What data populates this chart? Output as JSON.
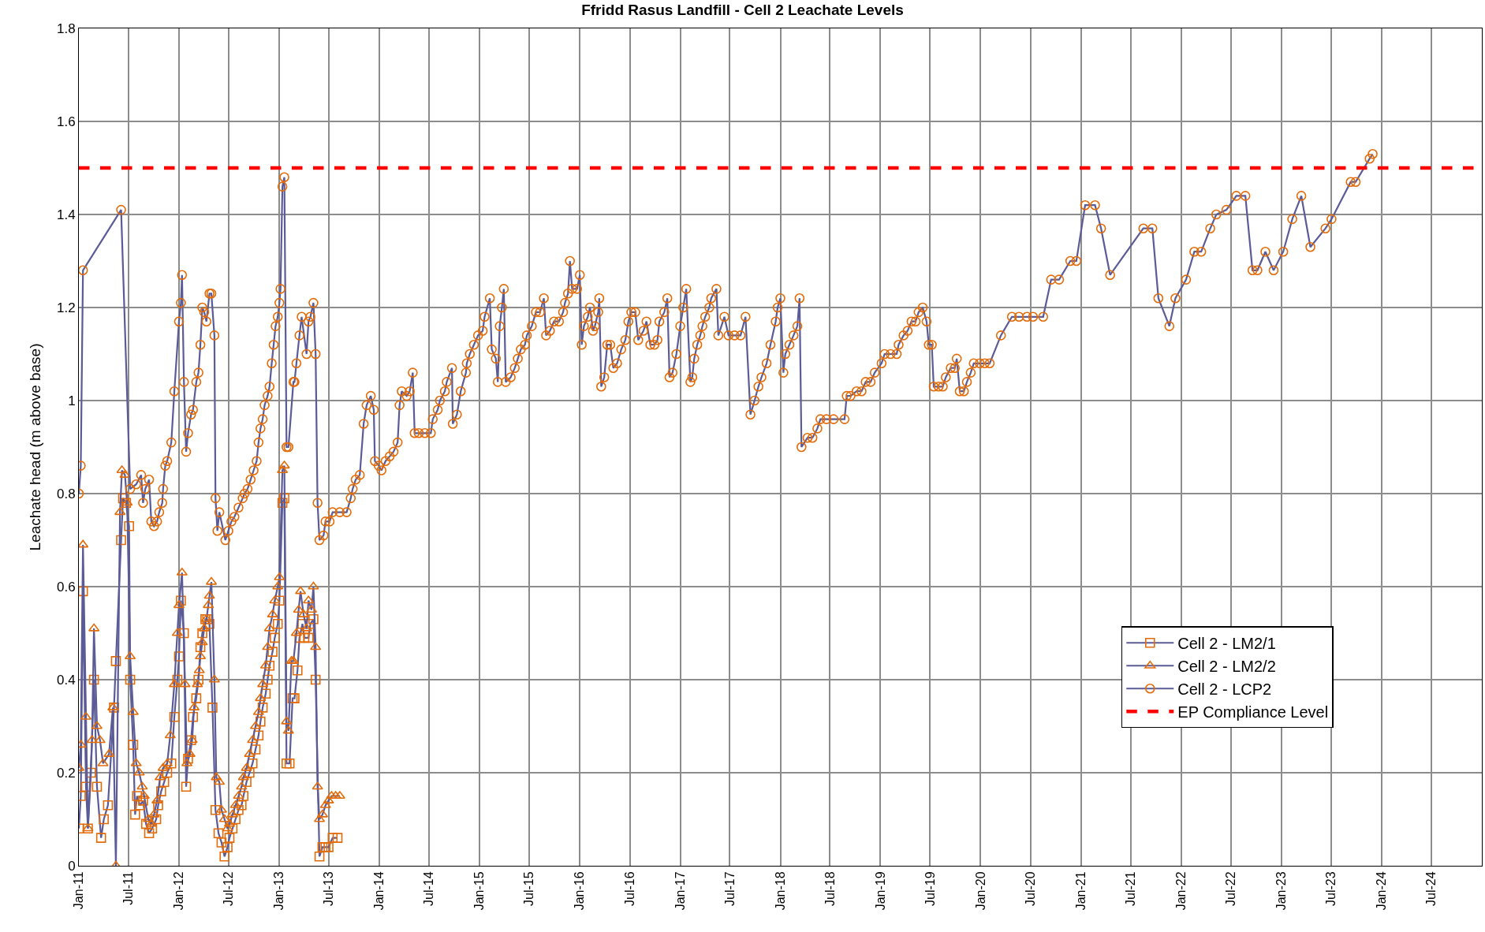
{
  "chart_data": {
    "type": "line",
    "title": "Ffridd Rasus Landfill - Cell 2 Leachate Levels",
    "ylabel": "Leachate head (m above base)",
    "xlim": [
      "2011-01-01",
      "2025-01-01"
    ],
    "ylim": [
      0,
      1.8
    ],
    "xticks": [
      {
        "value": "2011-01-01",
        "label": "Jan-11"
      },
      {
        "value": "2011-07-01",
        "label": "Jul-11"
      },
      {
        "value": "2012-01-01",
        "label": "Jan-12"
      },
      {
        "value": "2012-07-01",
        "label": "Jul-12"
      },
      {
        "value": "2013-01-01",
        "label": "Jan-13"
      },
      {
        "value": "2013-07-01",
        "label": "Jul-13"
      },
      {
        "value": "2014-01-01",
        "label": "Jan-14"
      },
      {
        "value": "2014-07-01",
        "label": "Jul-14"
      },
      {
        "value": "2015-01-01",
        "label": "Jan-15"
      },
      {
        "value": "2015-07-01",
        "label": "Jul-15"
      },
      {
        "value": "2016-01-01",
        "label": "Jan-16"
      },
      {
        "value": "2016-07-01",
        "label": "Jul-16"
      },
      {
        "value": "2017-01-01",
        "label": "Jan-17"
      },
      {
        "value": "2017-07-01",
        "label": "Jul-17"
      },
      {
        "value": "2018-01-01",
        "label": "Jan-18"
      },
      {
        "value": "2018-07-01",
        "label": "Jul-18"
      },
      {
        "value": "2019-01-01",
        "label": "Jan-19"
      },
      {
        "value": "2019-07-01",
        "label": "Jul-19"
      },
      {
        "value": "2020-01-01",
        "label": "Jan-20"
      },
      {
        "value": "2020-07-01",
        "label": "Jul-20"
      },
      {
        "value": "2021-01-01",
        "label": "Jan-21"
      },
      {
        "value": "2021-07-01",
        "label": "Jul-21"
      },
      {
        "value": "2022-01-01",
        "label": "Jan-22"
      },
      {
        "value": "2022-07-01",
        "label": "Jul-22"
      },
      {
        "value": "2023-01-01",
        "label": "Jan-23"
      },
      {
        "value": "2023-07-01",
        "label": "Jul-23"
      },
      {
        "value": "2024-01-01",
        "label": "Jan-24"
      },
      {
        "value": "2024-07-01",
        "label": "Jul-24"
      }
    ],
    "yticks": [
      0,
      0.2,
      0.4,
      0.6,
      0.8,
      1,
      1.2,
      1.4,
      1.6,
      1.8
    ],
    "grid": true,
    "legend": "bottom right",
    "line_style": "solid",
    "series": [
      {
        "name": "Cell 2 - LM2/1",
        "color": "#e36c0a",
        "marker": "square",
        "x": [
          "2011-01-01",
          "2011-01-08",
          "2011-01-16",
          "2011-01-27",
          "2011-02-03",
          "2011-02-14",
          "2011-02-25",
          "2011-03-08",
          "2011-03-23",
          "2011-04-02",
          "2011-04-17",
          "2011-05-09",
          "2011-05-16",
          "2011-06-04",
          "2011-06-11",
          "2011-06-22",
          "2011-07-03",
          "2011-07-07",
          "2011-07-18",
          "2011-07-25",
          "2011-08-01",
          "2011-08-12",
          "2011-08-23",
          "2011-09-03",
          "2011-09-14",
          "2011-09-25",
          "2011-10-10",
          "2011-10-17",
          "2011-10-28",
          "2011-11-08",
          "2011-11-19",
          "2011-12-04",
          "2011-12-15",
          "2011-12-26",
          "2012-01-01",
          "2012-01-08",
          "2012-01-19",
          "2012-01-27",
          "2012-02-03",
          "2012-02-14",
          "2012-02-21",
          "2012-03-04",
          "2012-03-12",
          "2012-03-19",
          "2012-03-26",
          "2012-04-06",
          "2012-04-13",
          "2012-04-21",
          "2012-05-02",
          "2012-05-13",
          "2012-05-24",
          "2012-06-04",
          "2012-06-15",
          "2012-06-26",
          "2012-07-03",
          "2012-07-14",
          "2012-07-25",
          "2012-08-05",
          "2012-08-16",
          "2012-08-23",
          "2012-09-03",
          "2012-09-14",
          "2012-09-25",
          "2012-10-06",
          "2012-10-17",
          "2012-10-24",
          "2012-11-01",
          "2012-11-12",
          "2012-11-19",
          "2012-11-26",
          "2012-12-07",
          "2012-12-15",
          "2012-12-26",
          "2013-01-01",
          "2013-01-12",
          "2013-01-19",
          "2013-01-27",
          "2013-02-07",
          "2013-02-18",
          "2013-02-25",
          "2013-03-08",
          "2013-03-15",
          "2013-03-26",
          "2013-04-02",
          "2013-04-17",
          "2013-04-24",
          "2013-05-05",
          "2013-05-13",
          "2013-05-27",
          "2013-06-07",
          "2013-06-18",
          "2013-06-29",
          "2013-07-14",
          "2013-08-01"
        ],
        "values": [
          0.08,
          0.15,
          0.59,
          0.17,
          0.08,
          0.2,
          0.4,
          0.17,
          0.06,
          0.1,
          0.13,
          0.34,
          0.44,
          0.7,
          0.79,
          0.78,
          0.73,
          0.4,
          0.26,
          0.11,
          0.15,
          0.13,
          0.14,
          0.09,
          0.07,
          0.08,
          0.1,
          0.13,
          0.16,
          0.18,
          0.2,
          0.22,
          0.32,
          0.4,
          0.45,
          0.57,
          0.5,
          0.17,
          0.23,
          0.27,
          0.32,
          0.36,
          0.4,
          0.47,
          0.5,
          0.53,
          0.53,
          0.52,
          0.34,
          0.12,
          0.07,
          0.05,
          0.02,
          0.04,
          0.06,
          0.08,
          0.1,
          0.12,
          0.13,
          0.15,
          0.18,
          0.2,
          0.22,
          0.25,
          0.28,
          0.31,
          0.34,
          0.37,
          0.4,
          0.43,
          0.46,
          0.49,
          0.52,
          0.57,
          0.78,
          0.79,
          0.22,
          0.22,
          0.36,
          0.36,
          0.42,
          0.49,
          0.52,
          0.49,
          0.49,
          0.52,
          0.53,
          0.4,
          0.02,
          0.04,
          0.04,
          0.04,
          0.06,
          0.06
        ]
      },
      {
        "name": "Cell 2 - LM2/2",
        "color": "#e36c0a",
        "marker": "triangle",
        "x": [
          "2011-01-01",
          "2011-01-08",
          "2011-01-16",
          "2011-01-27",
          "2011-02-03",
          "2011-02-18",
          "2011-02-25",
          "2011-03-08",
          "2011-03-19",
          "2011-03-30",
          "2011-04-21",
          "2011-05-05",
          "2011-05-16",
          "2011-05-31",
          "2011-06-07",
          "2011-06-18",
          "2011-06-26",
          "2011-07-07",
          "2011-07-18",
          "2011-07-29",
          "2011-08-09",
          "2011-08-20",
          "2011-08-27",
          "2011-09-11",
          "2011-09-22",
          "2011-10-02",
          "2011-10-13",
          "2011-10-24",
          "2011-11-04",
          "2011-11-19",
          "2011-11-30",
          "2011-12-15",
          "2011-12-26",
          "2012-01-01",
          "2012-01-12",
          "2012-01-23",
          "2012-01-30",
          "2012-02-10",
          "2012-02-18",
          "2012-02-25",
          "2012-03-08",
          "2012-03-15",
          "2012-03-19",
          "2012-03-26",
          "2012-04-02",
          "2012-04-10",
          "2012-04-17",
          "2012-04-21",
          "2012-04-28",
          "2012-05-09",
          "2012-05-16",
          "2012-05-27",
          "2012-06-04",
          "2012-06-15",
          "2012-06-26",
          "2012-07-03",
          "2012-07-14",
          "2012-07-25",
          "2012-08-05",
          "2012-08-16",
          "2012-08-23",
          "2012-09-03",
          "2012-09-14",
          "2012-09-25",
          "2012-10-06",
          "2012-10-17",
          "2012-10-24",
          "2012-11-01",
          "2012-11-12",
          "2012-11-19",
          "2012-11-26",
          "2012-12-07",
          "2012-12-15",
          "2012-12-26",
          "2013-01-01",
          "2013-01-12",
          "2013-01-19",
          "2013-01-27",
          "2013-02-03",
          "2013-02-14",
          "2013-02-21",
          "2013-03-04",
          "2013-03-12",
          "2013-03-19",
          "2013-03-30",
          "2013-04-10",
          "2013-04-17",
          "2013-04-28",
          "2013-05-05",
          "2013-05-13",
          "2013-05-20",
          "2013-05-27",
          "2013-06-07",
          "2013-06-18",
          "2013-06-29",
          "2013-07-10",
          "2013-07-25",
          "2013-08-09"
        ],
        "values": [
          0.21,
          0.26,
          0.69,
          0.32,
          0.08,
          0.27,
          0.51,
          0.3,
          0.27,
          0.22,
          0.24,
          0.34,
          0.0,
          0.76,
          0.85,
          0.84,
          0.78,
          0.45,
          0.33,
          0.22,
          0.2,
          0.17,
          0.15,
          0.1,
          0.09,
          0.11,
          0.14,
          0.19,
          0.21,
          0.22,
          0.28,
          0.39,
          0.5,
          0.56,
          0.63,
          0.39,
          0.22,
          0.24,
          0.27,
          0.34,
          0.39,
          0.42,
          0.45,
          0.48,
          0.51,
          0.53,
          0.56,
          0.58,
          0.61,
          0.4,
          0.19,
          0.18,
          0.12,
          0.1,
          0.08,
          0.09,
          0.11,
          0.13,
          0.15,
          0.17,
          0.19,
          0.21,
          0.24,
          0.27,
          0.3,
          0.33,
          0.36,
          0.39,
          0.43,
          0.47,
          0.51,
          0.54,
          0.57,
          0.6,
          0.62,
          0.85,
          0.86,
          0.31,
          0.29,
          0.44,
          0.44,
          0.5,
          0.55,
          0.59,
          0.54,
          0.51,
          0.57,
          0.55,
          0.6,
          0.47,
          0.17,
          0.1,
          0.11,
          0.13,
          0.14,
          0.15,
          0.15,
          0.15
        ]
      },
      {
        "name": "Cell 2 - LCP2",
        "color": "#e36c0a",
        "marker": "circle",
        "x": [
          "2011-01-01",
          "2011-01-08",
          "2011-01-16",
          "2011-06-04",
          "2011-07-07",
          "2011-07-29",
          "2011-08-16",
          "2011-08-23",
          "2011-08-31",
          "2011-09-14",
          "2011-09-22",
          "2011-10-02",
          "2011-10-13",
          "2011-10-21",
          "2011-11-01",
          "2011-11-04",
          "2011-11-12",
          "2011-11-19",
          "2011-12-04",
          "2011-12-15",
          "2012-01-01",
          "2012-01-08",
          "2012-01-12",
          "2012-01-19",
          "2012-01-27",
          "2012-02-03",
          "2012-02-14",
          "2012-02-21",
          "2012-03-04",
          "2012-03-12",
          "2012-03-19",
          "2012-03-26",
          "2012-04-02",
          "2012-04-10",
          "2012-04-21",
          "2012-04-28",
          "2012-05-09",
          "2012-05-13",
          "2012-05-20",
          "2012-05-27",
          "2012-06-18",
          "2012-06-29",
          "2012-07-10",
          "2012-07-21",
          "2012-08-05",
          "2012-08-20",
          "2012-08-27",
          "2012-09-07",
          "2012-09-18",
          "2012-09-29",
          "2012-10-10",
          "2012-10-17",
          "2012-10-24",
          "2012-11-01",
          "2012-11-08",
          "2012-11-19",
          "2012-11-26",
          "2012-12-04",
          "2012-12-11",
          "2012-12-18",
          "2012-12-26",
          "2013-01-01",
          "2013-01-05",
          "2013-01-12",
          "2013-01-19",
          "2013-01-27",
          "2013-02-03",
          "2013-02-21",
          "2013-02-25",
          "2013-03-04",
          "2013-03-15",
          "2013-03-23",
          "2013-04-10",
          "2013-04-17",
          "2013-04-24",
          "2013-05-05",
          "2013-05-13",
          "2013-05-20",
          "2013-05-27",
          "2013-06-11",
          "2013-06-18",
          "2013-07-03",
          "2013-07-14",
          "2013-08-09",
          "2013-09-03",
          "2013-09-18",
          "2013-09-25",
          "2013-10-06",
          "2013-10-21",
          "2013-11-04",
          "2013-11-15",
          "2013-11-30",
          "2013-12-11",
          "2013-12-15",
          "2013-12-29",
          "2014-01-08",
          "2014-01-23",
          "2014-02-07",
          "2014-02-21",
          "2014-03-08",
          "2014-03-15",
          "2014-03-23",
          "2014-04-10",
          "2014-04-21",
          "2014-05-02",
          "2014-05-09",
          "2014-05-24",
          "2014-06-15",
          "2014-07-07",
          "2014-07-14",
          "2014-08-01",
          "2014-08-09",
          "2014-08-27",
          "2014-09-03",
          "2014-09-22",
          "2014-09-25",
          "2014-10-10",
          "2014-10-24",
          "2014-11-12",
          "2014-11-15",
          "2014-11-26",
          "2014-12-11",
          "2014-12-26",
          "2015-01-12",
          "2015-01-19",
          "2015-02-07",
          "2015-02-14",
          "2015-03-01",
          "2015-03-08",
          "2015-03-15",
          "2015-03-23",
          "2015-03-30",
          "2015-04-06",
          "2015-04-24",
          "2015-05-09",
          "2015-05-20",
          "2015-05-31",
          "2015-06-15",
          "2015-06-22",
          "2015-07-10",
          "2015-07-25",
          "2015-08-09",
          "2015-08-23",
          "2015-08-31",
          "2015-09-14",
          "2015-09-29",
          "2015-10-17",
          "2015-11-01",
          "2015-11-08",
          "2015-11-19",
          "2015-11-26",
          "2015-12-04",
          "2015-12-22",
          "2016-01-01",
          "2016-01-08",
          "2016-01-16",
          "2016-01-30",
          "2016-02-07",
          "2016-02-18",
          "2016-02-25",
          "2016-03-08",
          "2016-03-12",
          "2016-03-19",
          "2016-03-30",
          "2016-04-10",
          "2016-04-21",
          "2016-05-02",
          "2016-05-16",
          "2016-05-31",
          "2016-06-15",
          "2016-06-26",
          "2016-07-07",
          "2016-07-21",
          "2016-08-01",
          "2016-08-20",
          "2016-08-31",
          "2016-09-14",
          "2016-09-29",
          "2016-10-10",
          "2016-10-17",
          "2016-11-04",
          "2016-11-15",
          "2016-11-23",
          "2016-12-04",
          "2016-12-18",
          "2017-01-01",
          "2017-01-12",
          "2017-01-23",
          "2017-02-07",
          "2017-02-14",
          "2017-02-21",
          "2017-03-04",
          "2017-03-15",
          "2017-03-23",
          "2017-04-02",
          "2017-04-17",
          "2017-04-24",
          "2017-05-13",
          "2017-05-20",
          "2017-06-11",
          "2017-06-26",
          "2017-07-18",
          "2017-08-09",
          "2017-08-27",
          "2017-09-14",
          "2017-09-29",
          "2017-10-13",
          "2017-10-24",
          "2017-11-12",
          "2017-11-26",
          "2017-12-15",
          "2017-12-22",
          "2018-01-01",
          "2018-01-12",
          "2018-01-19",
          "2018-02-03",
          "2018-02-18",
          "2018-03-04",
          "2018-03-12",
          "2018-03-19",
          "2018-04-10",
          "2018-04-28",
          "2018-05-16",
          "2018-05-27",
          "2018-06-18",
          "2018-07-14",
          "2018-08-23",
          "2018-08-31",
          "2018-09-14",
          "2018-10-06",
          "2018-10-24",
          "2018-11-08",
          "2018-11-26",
          "2018-12-11",
          "2019-01-05",
          "2019-01-16",
          "2019-02-07",
          "2019-03-01",
          "2019-03-08",
          "2019-03-26",
          "2019-04-10",
          "2019-04-24",
          "2019-05-09",
          "2019-05-20",
          "2019-06-04",
          "2019-06-18",
          "2019-06-26",
          "2019-07-07",
          "2019-07-14",
          "2019-08-01",
          "2019-08-16",
          "2019-08-27",
          "2019-09-14",
          "2019-09-29",
          "2019-10-06",
          "2019-10-17",
          "2019-11-01",
          "2019-11-12",
          "2019-11-26",
          "2019-12-07",
          "2019-12-29",
          "2020-01-16",
          "2020-02-03",
          "2020-03-15",
          "2020-04-24",
          "2020-05-20",
          "2020-06-18",
          "2020-07-10",
          "2020-08-16",
          "2020-09-14",
          "2020-10-13",
          "2020-11-23",
          "2020-12-15",
          "2021-01-16",
          "2021-02-21",
          "2021-03-15",
          "2021-04-17",
          "2021-08-16",
          "2021-09-18",
          "2021-10-10",
          "2021-11-19",
          "2021-12-11",
          "2022-01-19",
          "2022-02-18",
          "2022-03-15",
          "2022-04-17",
          "2022-05-09",
          "2022-06-15",
          "2022-07-21",
          "2022-08-23",
          "2022-09-18",
          "2022-10-06",
          "2022-11-04",
          "2022-12-04",
          "2023-01-08",
          "2023-02-10",
          "2023-03-15",
          "2023-04-17",
          "2023-06-11",
          "2023-07-03",
          "2023-09-11",
          "2023-09-29",
          "2023-11-19",
          "2023-11-30"
        ],
        "values": [
          0.8,
          0.86,
          1.28,
          1.41,
          0.81,
          0.82,
          0.84,
          0.78,
          0.81,
          0.83,
          0.74,
          0.73,
          0.74,
          0.76,
          0.78,
          0.81,
          0.86,
          0.87,
          0.91,
          1.02,
          1.17,
          1.21,
          1.27,
          1.04,
          0.89,
          0.93,
          0.97,
          0.98,
          1.04,
          1.06,
          1.12,
          1.2,
          1.19,
          1.17,
          1.23,
          1.23,
          1.14,
          0.79,
          0.72,
          0.76,
          0.7,
          0.72,
          0.74,
          0.75,
          0.77,
          0.79,
          0.8,
          0.81,
          0.83,
          0.85,
          0.87,
          0.91,
          0.94,
          0.96,
          0.99,
          1.01,
          1.03,
          1.08,
          1.12,
          1.16,
          1.18,
          1.21,
          1.24,
          1.46,
          1.48,
          0.9,
          0.9,
          1.04,
          1.04,
          1.08,
          1.14,
          1.18,
          1.1,
          1.17,
          1.18,
          1.21,
          1.1,
          0.78,
          0.7,
          0.71,
          0.74,
          0.74,
          0.76,
          0.76,
          0.76,
          0.79,
          0.81,
          0.83,
          0.84,
          0.95,
          0.99,
          1.01,
          0.98,
          0.87,
          0.86,
          0.85,
          0.87,
          0.88,
          0.89,
          0.91,
          0.99,
          1.02,
          1.01,
          1.02,
          1.06,
          0.93,
          0.93,
          0.93,
          0.93,
          0.96,
          0.98,
          1.0,
          1.02,
          1.04,
          1.07,
          0.95,
          0.97,
          1.02,
          1.06,
          1.08,
          1.1,
          1.12,
          1.14,
          1.15,
          1.18,
          1.22,
          1.11,
          1.09,
          1.04,
          1.16,
          1.2,
          1.24,
          1.04,
          1.05,
          1.07,
          1.09,
          1.11,
          1.12,
          1.14,
          1.16,
          1.19,
          1.19,
          1.22,
          1.14,
          1.15,
          1.17,
          1.17,
          1.19,
          1.21,
          1.23,
          1.3,
          1.24,
          1.24,
          1.27,
          1.12,
          1.16,
          1.18,
          1.2,
          1.15,
          1.16,
          1.19,
          1.22,
          1.03,
          1.05,
          1.12,
          1.12,
          1.07,
          1.08,
          1.11,
          1.13,
          1.17,
          1.19,
          1.19,
          1.13,
          1.15,
          1.17,
          1.12,
          1.12,
          1.13,
          1.17,
          1.19,
          1.22,
          1.05,
          1.06,
          1.1,
          1.16,
          1.2,
          1.24,
          1.04,
          1.05,
          1.09,
          1.12,
          1.14,
          1.16,
          1.18,
          1.2,
          1.22,
          1.24,
          1.14,
          1.18,
          1.14,
          1.14,
          1.14,
          1.18,
          0.97,
          1.0,
          1.03,
          1.05,
          1.08,
          1.12,
          1.17,
          1.2,
          1.22,
          1.06,
          1.1,
          1.12,
          1.14,
          1.16,
          1.22,
          0.9,
          0.92,
          0.92,
          0.94,
          0.96,
          0.96,
          0.96,
          0.96,
          1.01,
          1.01,
          1.02,
          1.02,
          1.04,
          1.04,
          1.06,
          1.08,
          1.1,
          1.1,
          1.1,
          1.12,
          1.14,
          1.15,
          1.17,
          1.17,
          1.19,
          1.2,
          1.17,
          1.12,
          1.12,
          1.03,
          1.03,
          1.03,
          1.05,
          1.07,
          1.07,
          1.09,
          1.02,
          1.02,
          1.04,
          1.06,
          1.08,
          1.08,
          1.08,
          1.08,
          1.14,
          1.18,
          1.18,
          1.18,
          1.18,
          1.18,
          1.26,
          1.26,
          1.3,
          1.3,
          1.42,
          1.42,
          1.37,
          1.27,
          1.37,
          1.37,
          1.22,
          1.16,
          1.22,
          1.26,
          1.32,
          1.32,
          1.37,
          1.4,
          1.41,
          1.44,
          1.44,
          1.28,
          1.28,
          1.32,
          1.28,
          1.32,
          1.39,
          1.44,
          1.33,
          1.37,
          1.39,
          1.47,
          1.47,
          1.52,
          1.53
        ]
      }
    ],
    "ref_lines": [
      {
        "axis": "y",
        "value": 1.5,
        "label": "EP Compliance Level",
        "color": "#ff0000",
        "line_style": "dashed"
      }
    ]
  }
}
